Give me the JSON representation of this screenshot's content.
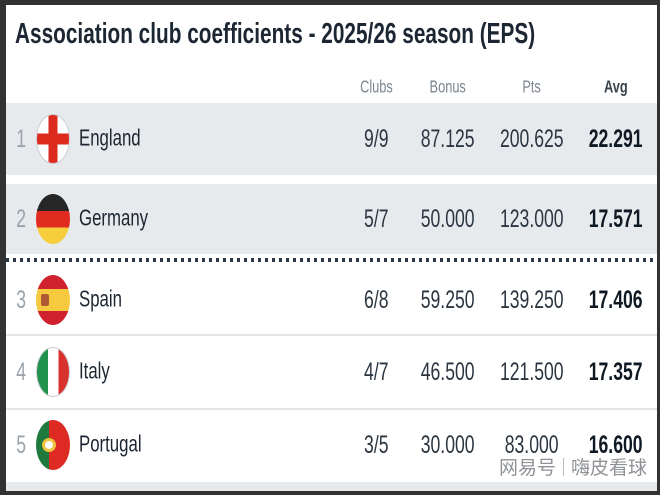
{
  "chart_data": {
    "type": "table",
    "title": "Association club coefficients - 2025/26 season (EPS)",
    "columns": [
      "Clubs",
      "Bonus",
      "Pts",
      "Avg"
    ],
    "rows": [
      {
        "rank": "1",
        "association": "England",
        "flag": "england-flag",
        "clubs": "9/9",
        "bonus": "87.125",
        "pts": "200.625",
        "avg": "22.291",
        "highlighted": true
      },
      {
        "rank": "2",
        "association": "Germany",
        "flag": "germany-flag",
        "clubs": "5/7",
        "bonus": "50.000",
        "pts": "123.000",
        "avg": "17.571",
        "highlighted": true
      },
      {
        "rank": "3",
        "association": "Spain",
        "flag": "spain-flag",
        "clubs": "6/8",
        "bonus": "59.250",
        "pts": "139.250",
        "avg": "17.406",
        "highlighted": false
      },
      {
        "rank": "4",
        "association": "Italy",
        "flag": "italy-flag",
        "clubs": "4/7",
        "bonus": "46.500",
        "pts": "121.500",
        "avg": "17.357",
        "highlighted": false
      },
      {
        "rank": "5",
        "association": "Portugal",
        "flag": "portugal-flag",
        "clubs": "3/5",
        "bonus": "30.000",
        "pts": "83.000",
        "avg": "16.600",
        "highlighted": false
      }
    ]
  },
  "watermark": {
    "brand": "网易号",
    "account": "嗨皮看球"
  },
  "colors": {
    "frame": "#323232",
    "title_text": "#1c2733",
    "highlight_row_bg": "#e7eaed",
    "dotted_cutoff_line": "#2d3944",
    "header_text": "#7b8590"
  }
}
